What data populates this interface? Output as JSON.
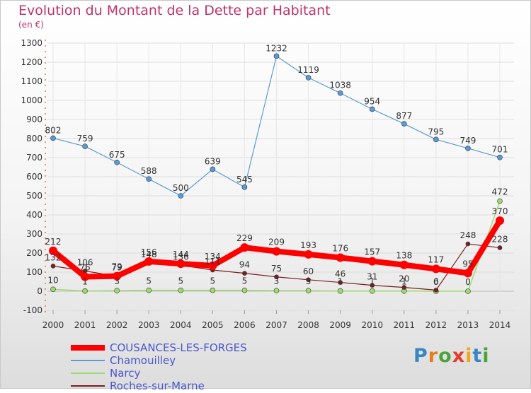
{
  "colors": {
    "title": "#c0336d",
    "grid": "#dddddd",
    "zero_line": "#bbbbbb",
    "legend_text": "#4a57cc"
  },
  "brand": {
    "text": "Proxiti",
    "letter_colors": [
      "#3a86c4",
      "#e87d1e",
      "#4aa43a",
      "#e33a2c",
      "#f0a81a",
      "#3a86c4",
      "#4aa43a"
    ]
  },
  "chart_data": {
    "type": "line",
    "title": "Evolution du Montant de la Dette par Habitant",
    "subtitle": "(en €)",
    "x": [
      2000,
      2001,
      2002,
      2003,
      2004,
      2005,
      2006,
      2007,
      2008,
      2009,
      2010,
      2011,
      2012,
      2013,
      2014
    ],
    "ylim": [
      -100,
      1300
    ],
    "yticks": [
      -100,
      0,
      100,
      200,
      300,
      400,
      500,
      600,
      700,
      800,
      900,
      1000,
      1100,
      1200,
      1300
    ],
    "grid": true,
    "legend_position": "bottom-left",
    "series": [
      {
        "name": "COUSANCES-LES-FORGES",
        "color": "#ff0000",
        "values": [
          212,
          76,
          79,
          156,
          144,
          134,
          229,
          209,
          193,
          176,
          157,
          138,
          117,
          95,
          370
        ],
        "labels": [
          "212",
          "76",
          "79",
          "156",
          "144",
          "134",
          "229",
          "209",
          "193",
          "176",
          "157",
          "138",
          "117",
          "95",
          "370"
        ]
      },
      {
        "name": "Chamouilley",
        "color": "#5b9bd5",
        "values": [
          802,
          759,
          675,
          588,
          500,
          639,
          545,
          1232,
          1119,
          1038,
          954,
          877,
          795,
          749,
          701
        ],
        "labels": [
          "802",
          "759",
          "675",
          "588",
          "500",
          "639",
          "545",
          "1232",
          "1119",
          "1038",
          "954",
          "877",
          "795",
          "749",
          "701"
        ]
      },
      {
        "name": "Narcy",
        "color": "#9edb6f",
        "values": [
          10,
          1,
          3,
          5,
          5,
          5,
          5,
          3,
          3,
          1,
          1,
          1,
          0,
          0,
          472
        ],
        "labels": [
          "10",
          "1",
          "3",
          "5",
          "5",
          "5",
          "5",
          "3",
          "3",
          "1",
          "1",
          "1",
          "0",
          "0",
          "472"
        ]
      },
      {
        "name": "Roches-sur-Marne",
        "color": "#7a1f1f",
        "values": [
          132,
          106,
          79,
          148,
          136,
          111,
          94,
          75,
          60,
          46,
          31,
          20,
          6,
          248,
          228
        ],
        "labels": [
          "132",
          "106",
          "79",
          "148",
          "136",
          "111",
          "94",
          "75",
          "60",
          "46",
          "31",
          "20",
          "6",
          "248",
          "228"
        ]
      }
    ]
  }
}
